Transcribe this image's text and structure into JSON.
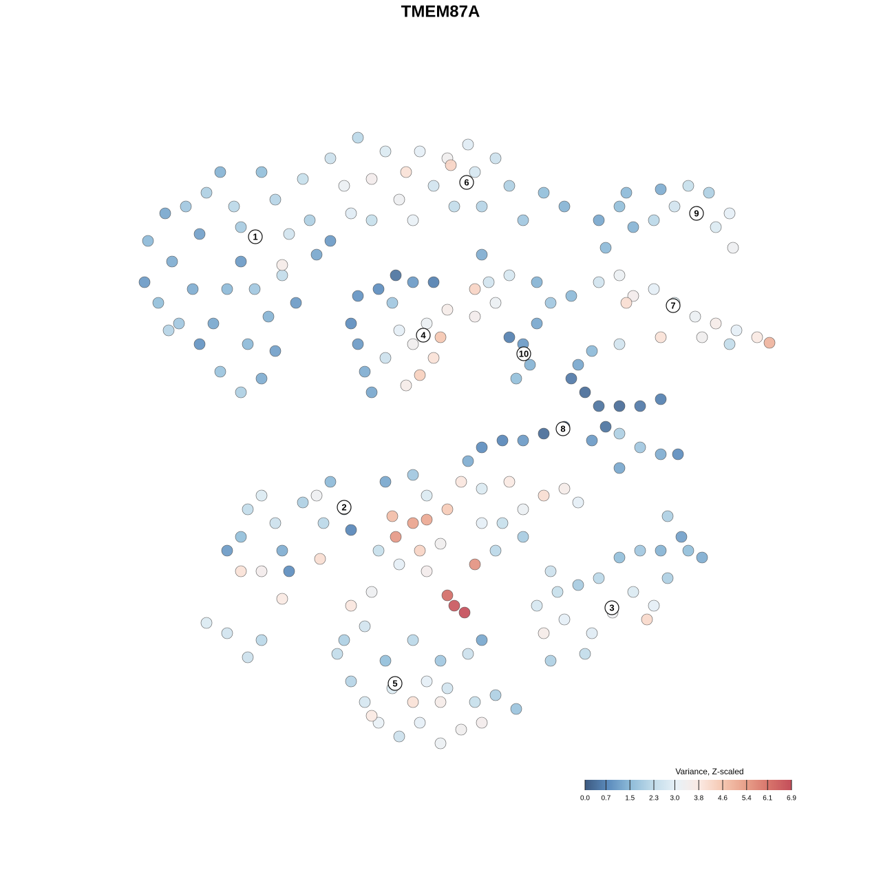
{
  "chart_data": {
    "type": "scatter",
    "title": "TMEM87A",
    "xlim": [
      0,
      1280
    ],
    "ylim": [
      1280,
      0
    ],
    "x": [
      215,
      240,
      210,
      230,
      250,
      270,
      290,
      300,
      320,
      340,
      350,
      330,
      310,
      290,
      320,
      350,
      380,
      400,
      390,
      370,
      410,
      420,
      400,
      380,
      440,
      450,
      460,
      430,
      360,
      280,
      260,
      245,
      410,
      480,
      350,
      480,
      500,
      520,
      540,
      560,
      580,
      590,
      610,
      630,
      650,
      660,
      690,
      700,
      720,
      740,
      760,
      790,
      820,
      600,
      540,
      510,
      655,
      680,
      870,
      900,
      920,
      950,
      980,
      1000,
      1030,
      1060,
      1040,
      1065,
      960,
      910,
      870,
      900,
      920,
      950,
      980,
      1010,
      1040,
      1070,
      1100,
      1118,
      1020,
      960,
      900,
      910,
      1060,
      880,
      510,
      520,
      530,
      540,
      560,
      580,
      600,
      620,
      640,
      630,
      610,
      590,
      570,
      550,
      600,
      630,
      650,
      575,
      520,
      740,
      760,
      770,
      750,
      780,
      800,
      720,
      690,
      710,
      780,
      830,
      690,
      700,
      740,
      830,
      850,
      870,
      900,
      930,
      960,
      820,
      790,
      760,
      730,
      700,
      680,
      860,
      900,
      930,
      960,
      985,
      900,
      880,
      840,
      860,
      330,
      350,
      360,
      380,
      400,
      410,
      420,
      380,
      350,
      440,
      460,
      480,
      500,
      510,
      470,
      300,
      330,
      360,
      380,
      410,
      465,
      560,
      600,
      620,
      650,
      600,
      575,
      570,
      620,
      640,
      670,
      700,
      740,
      760,
      790,
      820,
      840,
      690,
      650,
      660,
      675,
      620,
      580,
      550,
      720,
      760,
      800,
      540,
      510,
      700,
      730,
      610,
      780,
      820,
      860,
      890,
      920,
      950,
      970,
      1000,
      1020,
      990,
      960,
      930,
      900,
      870,
      840,
      810,
      790,
      940,
      850,
      800,
      970,
      490,
      510,
      530,
      550,
      580,
      610,
      640,
      670,
      700,
      690,
      720,
      750,
      640,
      600,
      570,
      540,
      500,
      530,
      600,
      640,
      680,
      620,
      700,
      560,
      650
    ],
    "y": [
      350,
      310,
      410,
      440,
      380,
      300,
      340,
      280,
      250,
      300,
      380,
      420,
      470,
      500,
      540,
      570,
      550,
      510,
      460,
      420,
      400,
      340,
      290,
      250,
      260,
      320,
      370,
      440,
      500,
      420,
      470,
      480,
      385,
      350,
      330,
      230,
      270,
      200,
      260,
      220,
      290,
      250,
      220,
      270,
      230,
      300,
      250,
      300,
      230,
      270,
      320,
      280,
      300,
      320,
      320,
      310,
      240,
      210,
      320,
      300,
      330,
      320,
      300,
      270,
      280,
      310,
      330,
      360,
      275,
      280,
      410,
      400,
      430,
      420,
      440,
      460,
      470,
      480,
      490,
      498,
      490,
      490,
      500,
      440,
      500,
      360,
      470,
      500,
      540,
      570,
      520,
      480,
      500,
      470,
      490,
      520,
      545,
      560,
      440,
      420,
      410,
      410,
      450,
      400,
      430,
      490,
      500,
      530,
      550,
      470,
      440,
      440,
      460,
      410,
      410,
      430,
      420,
      370,
      400,
      550,
      570,
      590,
      590,
      590,
      580,
      620,
      630,
      640,
      640,
      650,
      670,
      640,
      630,
      650,
      660,
      660,
      680,
      620,
      530,
      510,
      800,
      780,
      740,
      720,
      760,
      800,
      830,
      830,
      830,
      730,
      720,
      700,
      740,
      770,
      760,
      905,
      920,
      955,
      930,
      870,
      812,
      700,
      690,
      720,
      740,
      760,
      780,
      750,
      755,
      790,
      700,
      710,
      700,
      740,
      720,
      710,
      730,
      820,
      865,
      880,
      890,
      830,
      820,
      800,
      800,
      780,
      830,
      860,
      880,
      760,
      760,
      800,
      880,
      900,
      920,
      890,
      860,
      880,
      840,
      800,
      810,
      780,
      800,
      800,
      810,
      840,
      850,
      860,
      920,
      900,
      950,
      960,
      750,
      950,
      990,
      1020,
      1050,
      1070,
      1050,
      1080,
      1060,
      1050,
      1020,
      1010,
      1030,
      1020,
      1020,
      1000,
      1040,
      930,
      910,
      930,
      960,
      950,
      990,
      930,
      960,
      1000
    ],
    "values": [
      1.5,
      1.2,
      1.0,
      1.6,
      1.3,
      1.8,
      1.1,
      2.0,
      1.4,
      2.2,
      1.0,
      1.5,
      1.2,
      0.9,
      1.7,
      2.0,
      1.3,
      1.1,
      1.4,
      1.8,
      2.3,
      2.6,
      2.1,
      1.6,
      2.4,
      2.0,
      1.2,
      1.0,
      1.5,
      1.3,
      1.8,
      2.1,
      3.6,
      1.0,
      1.9,
      2.5,
      3.2,
      2.2,
      3.5,
      2.8,
      3.3,
      4.0,
      3.0,
      2.6,
      3.4,
      2.3,
      2.7,
      2.1,
      2.5,
      2.0,
      1.8,
      1.6,
      1.4,
      3.1,
      2.4,
      2.9,
      4.3,
      2.9,
      1.2,
      1.6,
      1.4,
      2.2,
      2.6,
      2.4,
      2.0,
      3.0,
      2.8,
      3.3,
      1.3,
      1.5,
      2.6,
      3.2,
      3.5,
      3.0,
      2.8,
      3.2,
      3.6,
      3.0,
      3.8,
      5.0,
      3.4,
      4.0,
      2.6,
      4.1,
      2.3,
      1.5,
      0.8,
      1.0,
      1.3,
      1.2,
      2.5,
      3.0,
      3.4,
      3.2,
      4.6,
      4.0,
      4.4,
      3.6,
      1.8,
      0.8,
      1.0,
      0.6,
      3.6,
      0.4,
      0.9,
      0.6,
      1.0,
      1.4,
      1.6,
      1.2,
      1.8,
      3.2,
      3.5,
      2.6,
      1.4,
      1.5,
      4.3,
      1.3,
      2.7,
      0.5,
      0.3,
      0.4,
      0.3,
      0.5,
      0.6,
      0.5,
      0.3,
      1.0,
      0.7,
      0.8,
      1.3,
      1.0,
      2.0,
      1.8,
      1.3,
      0.8,
      1.2,
      0.4,
      1.2,
      1.5,
      1.0,
      1.6,
      2.3,
      2.8,
      2.5,
      1.3,
      0.8,
      3.5,
      4.0,
      2.0,
      3.3,
      1.5,
      1.0,
      0.7,
      2.2,
      2.8,
      2.6,
      2.5,
      2.2,
      3.8,
      4.1,
      1.2,
      1.8,
      2.8,
      4.5,
      5.3,
      5.5,
      4.8,
      5.2,
      3.4,
      3.9,
      2.8,
      3.8,
      3.2,
      4.1,
      3.6,
      3.0,
      5.6,
      6.3,
      6.7,
      6.9,
      3.5,
      3.0,
      2.4,
      2.2,
      1.9,
      2.5,
      3.3,
      3.9,
      3.0,
      2.4,
      4.3,
      2.7,
      3.0,
      2.9,
      3.3,
      2.8,
      3.0,
      2.0,
      1.6,
      1.3,
      1.1,
      1.4,
      1.8,
      1.6,
      2.2,
      1.9,
      2.4,
      3.6,
      4.2,
      2.3,
      2.0,
      2.0,
      2.3,
      2.1,
      2.7,
      3.1,
      2.5,
      3.0,
      3.2,
      3.4,
      3.5,
      2.4,
      2.0,
      1.7,
      3.6,
      4.0,
      2.8,
      3.8,
      2.0,
      2.6,
      2.2,
      1.8,
      2.5,
      3.0,
      1.2,
      1.6,
      2.6
    ],
    "annotations": [
      {
        "text": "1",
        "x": 371,
        "y": 344
      },
      {
        "text": "6",
        "x": 678,
        "y": 265
      },
      {
        "text": "9",
        "x": 1012,
        "y": 310
      },
      {
        "text": "7",
        "x": 978,
        "y": 444
      },
      {
        "text": "4",
        "x": 615,
        "y": 487
      },
      {
        "text": "10",
        "x": 761,
        "y": 514
      },
      {
        "text": "8",
        "x": 818,
        "y": 623
      },
      {
        "text": "2",
        "x": 500,
        "y": 737
      },
      {
        "text": "3",
        "x": 889,
        "y": 883
      },
      {
        "text": "5",
        "x": 574,
        "y": 993
      }
    ],
    "colorbar": {
      "title": "Variance, Z-scaled",
      "clim": [
        0,
        6.9
      ],
      "ticks": [
        {
          "value": 0,
          "label": "0.0"
        },
        0.7,
        1.5,
        2.3,
        {
          "value": 3,
          "label": "3.0"
        },
        3.8,
        4.6,
        5.4,
        6.1,
        6.9
      ],
      "colors": [
        "#3d5a80",
        "#5b8bbd",
        "#8fbcd9",
        "#c2dcea",
        "#e8f1f7",
        "#fbe9e2",
        "#f5c7b1",
        "#e8a08a",
        "#d7746b",
        "#c44e5a"
      ]
    }
  }
}
